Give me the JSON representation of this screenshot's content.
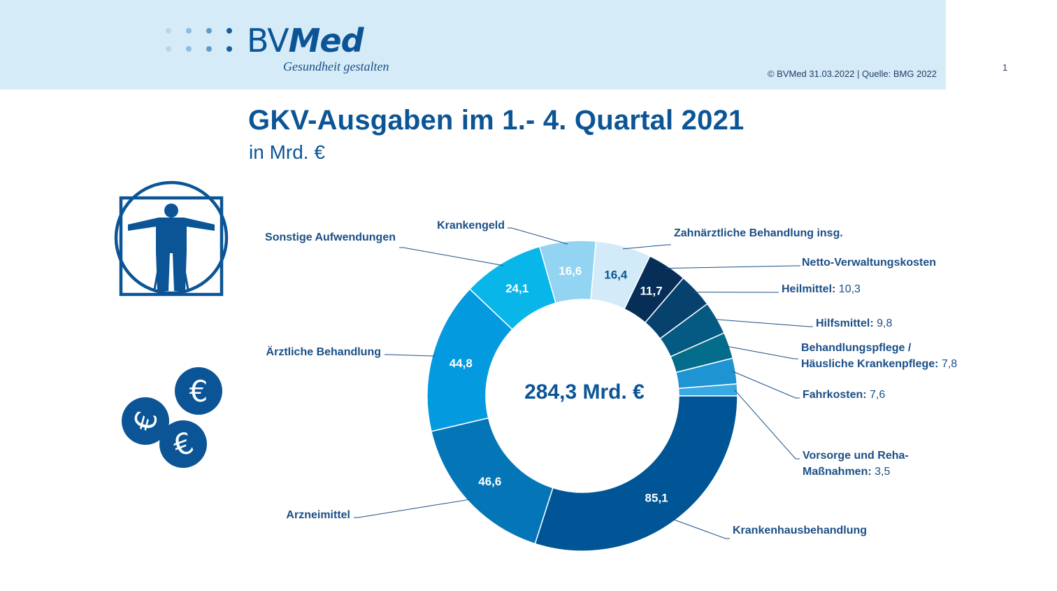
{
  "brand": {
    "name_part1": "BV",
    "name_part2": "Med",
    "tagline": "Gesundheit gestalten",
    "copyright": "© BVMed 31.03.2022 | Quelle: BMG 2022",
    "page_number": "1"
  },
  "icons": {
    "person": "vitruvian-man-icon",
    "money": "euro-coins-icon"
  },
  "colors": {
    "header_background": "#d6ebf8",
    "title": "#0b5596"
  },
  "chart_data": {
    "type": "pie",
    "style": "donut",
    "title": "GKV-Ausgaben im 1.- 4. Quartal 2021",
    "subtitle": "in Mrd. €",
    "center_label": "284,3 Mrd. €",
    "total": 284.3,
    "slices": [
      {
        "name": "Krankenhausbehandlung",
        "value": 85.1,
        "value_label": "85,1",
        "color": "#005596",
        "label_color": "#ffffff"
      },
      {
        "name": "Arzneimittel",
        "value": 46.6,
        "value_label": "46,6",
        "color": "#0476b8",
        "label_color": "#ffffff"
      },
      {
        "name": "Ärztliche Behandlung",
        "value": 44.8,
        "value_label": "44,8",
        "color": "#049ae0",
        "label_color": "#ffffff"
      },
      {
        "name": "Sonstige Aufwendungen",
        "value": 24.1,
        "value_label": "24,1",
        "color": "#09b6e9",
        "label_color": "#ffffff"
      },
      {
        "name": "Krankengeld",
        "value": 16.6,
        "value_label": "16,6",
        "color": "#92d4f2",
        "label_color": "#ffffff"
      },
      {
        "name": "Zahnärztliche Behandlung insg.",
        "value": 16.4,
        "value_label": "16,4",
        "color": "#d3ebf8",
        "label_color": "#0b5596"
      },
      {
        "name": "Netto-Verwaltungskosten",
        "value": 11.7,
        "value_label": "11,7",
        "color": "#062e57",
        "label_color": "#ffffff"
      },
      {
        "name": "Heilmittel:",
        "value": 10.3,
        "value_label": "10,3",
        "color": "#07426e",
        "label_color": "#ffffff"
      },
      {
        "name": "Hilfsmittel:",
        "value": 9.8,
        "value_label": "9,8",
        "color": "#055a84",
        "label_color": "#ffffff"
      },
      {
        "name": "Behandlungspflege / Häusliche Krankenpflege:",
        "value": 7.8,
        "value_label": "7,8",
        "color": "#046d8b",
        "label_color": "#ffffff"
      },
      {
        "name": "Fahrkosten:",
        "value": 7.6,
        "value_label": "7,6",
        "color": "#1e94d2",
        "label_color": "#ffffff"
      },
      {
        "name": "Vorsorge und Reha-Maßnahmen:",
        "value": 3.5,
        "value_label": "3,5",
        "color": "#38a9e2",
        "label_color": "#ffffff"
      }
    ]
  }
}
